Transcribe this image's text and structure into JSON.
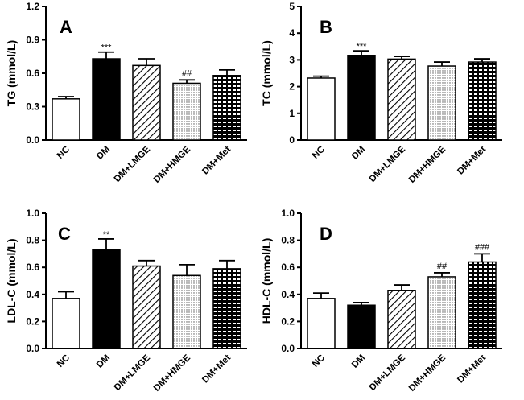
{
  "figure": {
    "background": "#ffffff",
    "ink": "#000000"
  },
  "categories": [
    "NC",
    "DM",
    "DM+LMGE",
    "DM+HMGE",
    "DM+Met"
  ],
  "patterns": [
    "white",
    "black",
    "diagonal",
    "dots",
    "brick"
  ],
  "chart_data": [
    {
      "type": "bar",
      "panel": "A",
      "ylabel": "TG (mmol/L)",
      "ylim": [
        0,
        1.2
      ],
      "yticks": [
        "0.0",
        "0.3",
        "0.6",
        "0.9",
        "1.2"
      ],
      "categories": [
        "NC",
        "DM",
        "DM+LMGE",
        "DM+HMGE",
        "DM+Met"
      ],
      "values": [
        0.37,
        0.73,
        0.67,
        0.51,
        0.58
      ],
      "errors": [
        0.02,
        0.06,
        0.06,
        0.03,
        0.05
      ],
      "annotations": [
        "",
        "***",
        "",
        "##",
        ""
      ]
    },
    {
      "type": "bar",
      "panel": "B",
      "ylabel": "TC (mmol/L)",
      "ylim": [
        0,
        5
      ],
      "yticks": [
        "0",
        "1",
        "2",
        "3",
        "4",
        "5"
      ],
      "categories": [
        "NC",
        "DM",
        "DM+LMGE",
        "DM+HMGE",
        "DM+Met"
      ],
      "values": [
        2.32,
        3.17,
        3.03,
        2.77,
        2.92
      ],
      "errors": [
        0.07,
        0.17,
        0.1,
        0.15,
        0.12
      ],
      "annotations": [
        "",
        "***",
        "",
        "",
        ""
      ]
    },
    {
      "type": "bar",
      "panel": "C",
      "ylabel": "LDL-C (mmol/L)",
      "ylim": [
        0,
        1.0
      ],
      "yticks": [
        "0.0",
        "0.2",
        "0.4",
        "0.6",
        "0.8",
        "1.0"
      ],
      "categories": [
        "NC",
        "DM",
        "DM+LMGE",
        "DM+HMGE",
        "DM+Met"
      ],
      "values": [
        0.37,
        0.73,
        0.61,
        0.54,
        0.59
      ],
      "errors": [
        0.05,
        0.08,
        0.04,
        0.08,
        0.06
      ],
      "annotations": [
        "",
        "**",
        "",
        "",
        ""
      ]
    },
    {
      "type": "bar",
      "panel": "D",
      "ylabel": "HDL-C (mmol/L)",
      "ylim": [
        0,
        1.0
      ],
      "yticks": [
        "0.0",
        "0.2",
        "0.4",
        "0.6",
        "0.8",
        "1.0"
      ],
      "categories": [
        "NC",
        "DM",
        "DM+LMGE",
        "DM+HMGE",
        "DM+Met"
      ],
      "values": [
        0.37,
        0.32,
        0.43,
        0.53,
        0.64
      ],
      "errors": [
        0.04,
        0.02,
        0.04,
        0.03,
        0.06
      ],
      "annotations": [
        "",
        "",
        "",
        "##",
        "###"
      ]
    }
  ]
}
